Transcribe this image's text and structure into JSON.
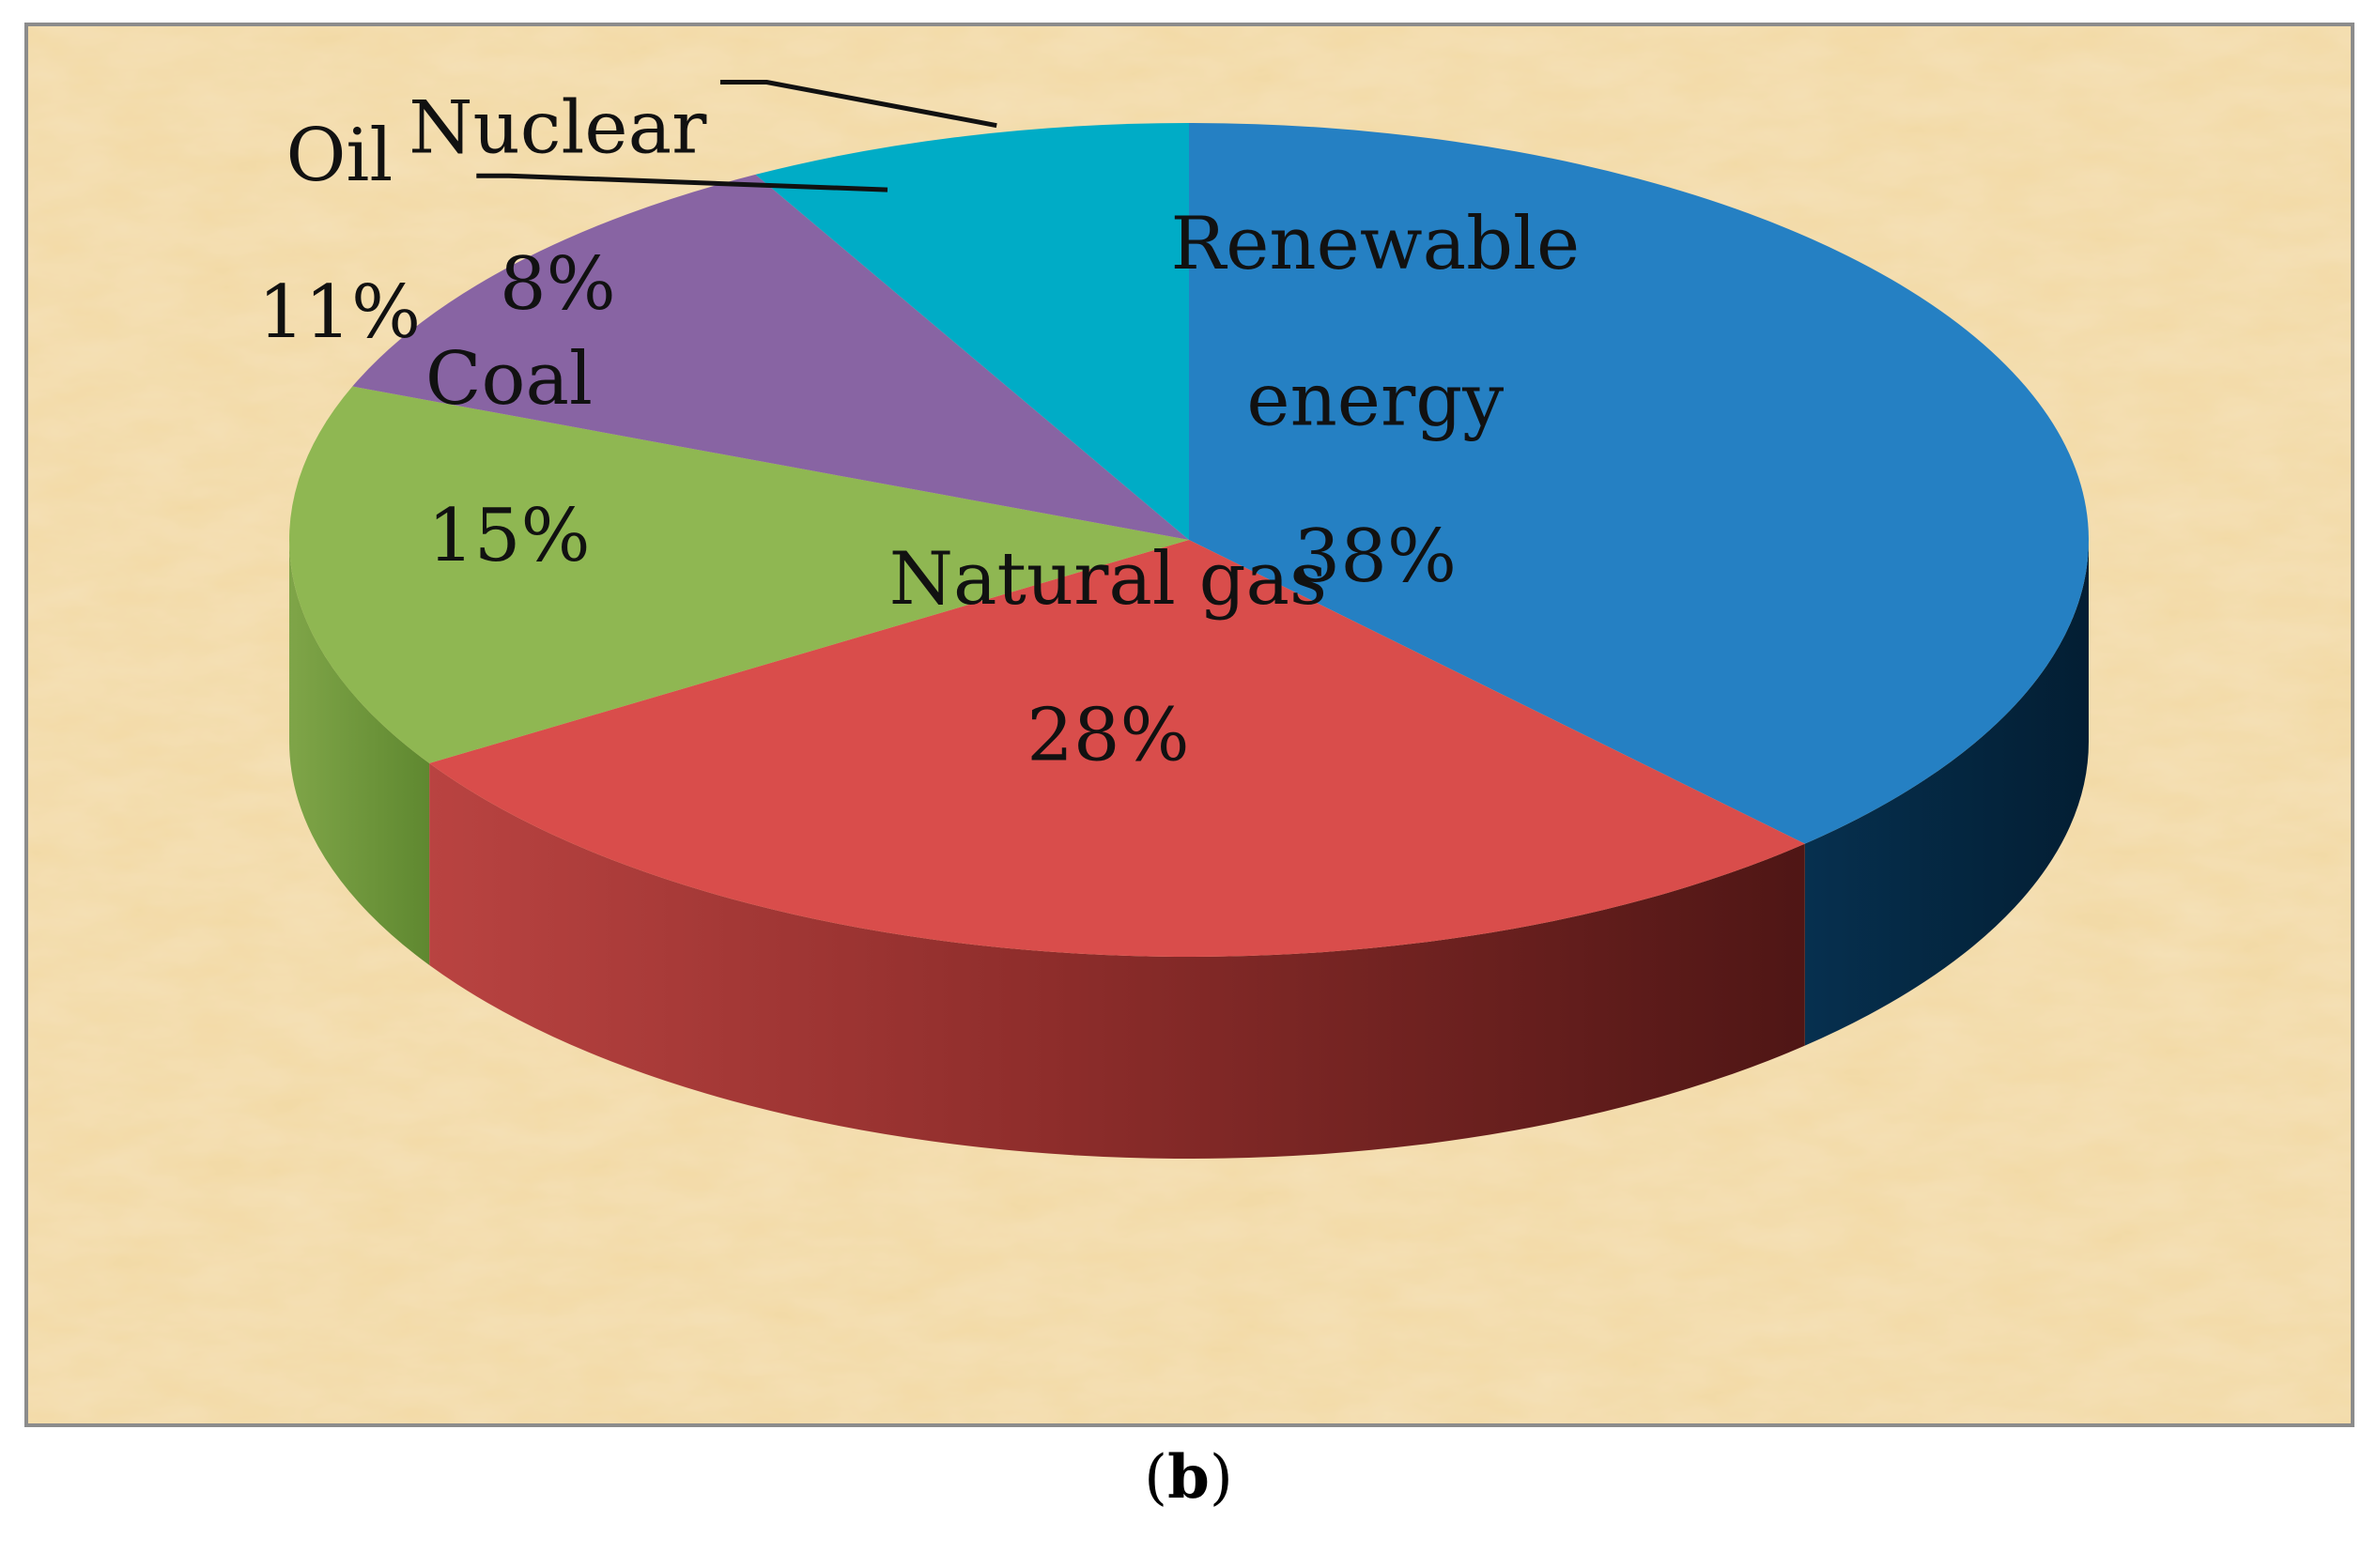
{
  "chart_data": {
    "type": "pie",
    "style": "3d",
    "slices": [
      {
        "label": "Renewable energy",
        "label_lines": [
          "Renewable",
          "energy"
        ],
        "value": 38,
        "pct_text": "38%",
        "color": "#2580C3",
        "side_color": "#052B47"
      },
      {
        "label": "Natural gas",
        "label_lines": [
          "Natural gas"
        ],
        "value": 28,
        "pct_text": "28%",
        "color": "#D94D4B",
        "side_color": "#8E2A28"
      },
      {
        "label": "Coal",
        "label_lines": [
          "Coal"
        ],
        "value": 15,
        "pct_text": "15%",
        "color": "#8FB752",
        "side_color": "#6B8F38"
      },
      {
        "label": "Oil",
        "label_lines": [
          "Oil"
        ],
        "value": 11,
        "pct_text": "11%",
        "color": "#8864A3",
        "side_color": "#5E4474"
      },
      {
        "label": "Nuclear",
        "label_lines": [
          "Nuclear"
        ],
        "value": 8,
        "pct_text": "8%",
        "color": "#00ACC6",
        "side_color": "#007A8D"
      }
    ],
    "background_color": "#F2D9A4"
  },
  "caption": {
    "open": "(",
    "letter": "b",
    "close": ")"
  }
}
